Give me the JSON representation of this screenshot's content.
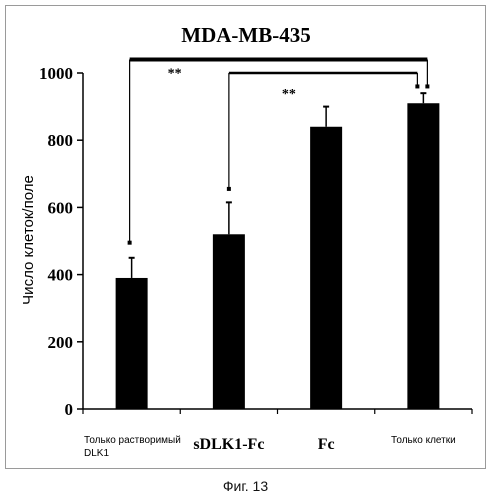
{
  "figure_caption": "Фиг. 13",
  "chart_data": {
    "type": "bar",
    "title": "MDA-MB-435",
    "ylabel": "Число клеток/поле",
    "xlabel": "",
    "ylim": [
      0,
      1000
    ],
    "yticks": [
      0,
      200,
      400,
      600,
      800,
      1000
    ],
    "grid": false,
    "legend": "none",
    "bar_color": "#000000",
    "categories": [
      {
        "line1": "Только растворимый",
        "line2": "DLK1",
        "style": "small"
      },
      {
        "line1": "sDLK1-Fc",
        "line2": "",
        "style": "bold"
      },
      {
        "line1": "Fc",
        "line2": "",
        "style": "bold"
      },
      {
        "line1": "Только клетки",
        "line2": "",
        "style": "small"
      }
    ],
    "values": [
      390,
      520,
      840,
      910
    ],
    "error_plus": [
      60,
      95,
      60,
      30
    ],
    "significance": [
      {
        "from": 0,
        "to": 3,
        "label": "**",
        "height": 1040
      },
      {
        "from": 1,
        "to": 3,
        "label": "**",
        "height": 1000
      }
    ]
  }
}
